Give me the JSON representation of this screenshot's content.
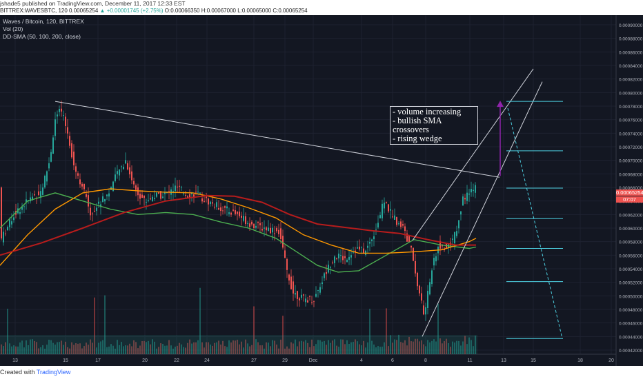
{
  "header": {
    "publisher": "jshade5",
    "published_text": "published on TradingView.com, December 11, 2017 12:33 EST"
  },
  "infobar": {
    "symbol": "BITTREX:WAVESBTC, 120",
    "last": "0.00065254",
    "change": "▲ +0.00001745 (+2.75%)",
    "ohlc": "O:0.00066350 H:0.00067000 L:0.00065000 C:0.00065254"
  },
  "legend": {
    "title": "Waves / Bitcoin, 120, BITTREX",
    "vol": "Vol (20)",
    "sma": "DD-SMA (50, 100, 200, close)"
  },
  "annotation": {
    "lines": [
      "- volume increasing",
      "- bullish SMA crossovers",
      "- rising wedge"
    ]
  },
  "footer": {
    "created_with": "Created with",
    "brand": "TradingView"
  },
  "price_tags": {
    "last": "0.00065254",
    "countdown": "07:07"
  },
  "colors": {
    "background": "#131722",
    "up": "#26a69a",
    "down": "#ef5350",
    "sma50": "#4caf50",
    "sma100": "#ff9800",
    "sma200": "#b71c1c",
    "trend": "#d1d4dc",
    "target": "#8e24aa",
    "level": "#4dd0e1"
  },
  "chart_data": {
    "type": "candlestick",
    "y_axis": {
      "min": 0.00042,
      "max": 0.0009,
      "ticks": [
        "0.00090000",
        "0.00088000",
        "0.00086000",
        "0.00084000",
        "0.00082000",
        "0.00080000",
        "0.00078000",
        "0.00076000",
        "0.00074000",
        "0.00072000",
        "0.00070000",
        "0.00068000",
        "0.00066000",
        "0.00064000",
        "0.00062000",
        "0.00060000",
        "0.00058000",
        "0.00056000",
        "0.00054000",
        "0.00052000",
        "0.00050000",
        "0.00048000",
        "0.00046000",
        "0.00044000",
        "0.00042000"
      ]
    },
    "x_axis": {
      "ticks": [
        "13",
        "15",
        "17",
        "20",
        "22",
        "24",
        "27",
        "29",
        "Dec",
        "4",
        "6",
        "8",
        "11",
        "13",
        "15",
        "18",
        "20"
      ]
    },
    "series": [
      {
        "name": "SMA 50",
        "points": [
          [
            0,
            0.0006
          ],
          [
            40,
            0.00064
          ],
          [
            80,
            0.000652
          ],
          [
            120,
            0.00064
          ],
          [
            160,
            0.000628
          ],
          [
            200,
            0.00062
          ],
          [
            240,
            0.000623
          ],
          [
            280,
            0.00062
          ],
          [
            320,
            0.000609
          ],
          [
            360,
            0.0006
          ],
          [
            400,
            0.000585
          ],
          [
            430,
            0.000565
          ],
          [
            460,
            0.000545
          ],
          [
            490,
            0.000535
          ],
          [
            520,
            0.000537
          ],
          [
            560,
            0.00056
          ],
          [
            600,
            0.000583
          ],
          [
            640,
            0.000575
          ],
          [
            680,
            0.00057
          ],
          [
            690,
            0.000572
          ]
        ]
      },
      {
        "name": "SMA 100",
        "points": [
          [
            0,
            0.000545
          ],
          [
            40,
            0.00059
          ],
          [
            80,
            0.000628
          ],
          [
            120,
            0.000652
          ],
          [
            160,
            0.000658
          ],
          [
            200,
            0.000655
          ],
          [
            240,
            0.000653
          ],
          [
            280,
            0.000652
          ],
          [
            320,
            0.000643
          ],
          [
            360,
            0.00063
          ],
          [
            400,
            0.000615
          ],
          [
            440,
            0.00059
          ],
          [
            480,
            0.000575
          ],
          [
            520,
            0.000563
          ],
          [
            560,
            0.000563
          ],
          [
            600,
            0.000565
          ],
          [
            640,
            0.000568
          ],
          [
            680,
            0.00058
          ],
          [
            690,
            0.000585
          ]
        ]
      },
      {
        "name": "SMA 200",
        "points": [
          [
            0,
            0.00056
          ],
          [
            60,
            0.000578
          ],
          [
            120,
            0.0006
          ],
          [
            180,
            0.000623
          ],
          [
            240,
            0.00064
          ],
          [
            300,
            0.000648
          ],
          [
            340,
            0.000647
          ],
          [
            380,
            0.000638
          ],
          [
            420,
            0.00062
          ],
          [
            460,
            0.000606
          ],
          [
            500,
            0.000601
          ],
          [
            540,
            0.000596
          ],
          [
            580,
            0.000592
          ],
          [
            620,
            0.000583
          ],
          [
            660,
            0.000575
          ],
          [
            690,
            0.000575
          ]
        ]
      }
    ]
  }
}
